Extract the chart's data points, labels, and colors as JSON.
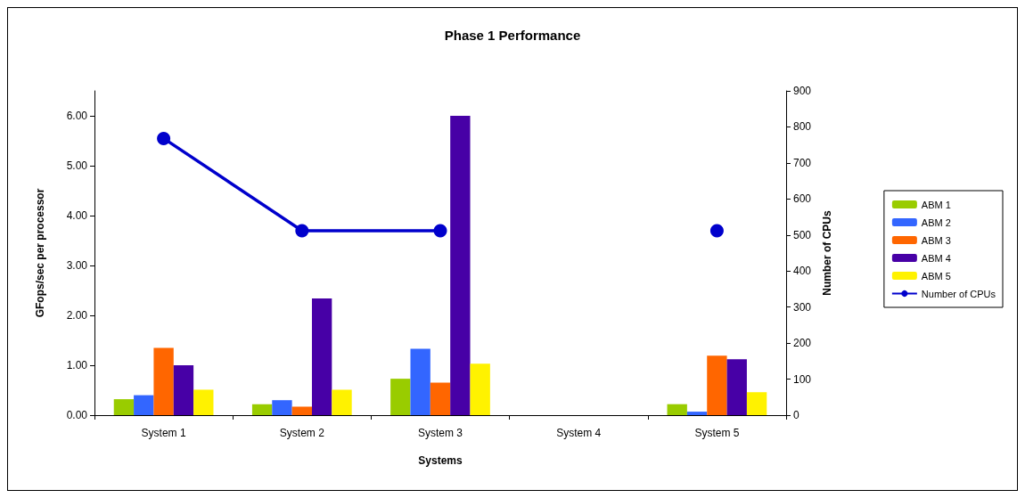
{
  "chart_data": {
    "type": "bar",
    "title": "Phase 1 Performance",
    "xlabel": "Systems",
    "ylabel": "GFops/sec per processor",
    "y2label": "Number of CPUs",
    "categories": [
      "System 1",
      "System 2",
      "System 3",
      "System 4",
      "System 5"
    ],
    "series": [
      {
        "name": "ABM 1",
        "color": "#99cc00",
        "values": [
          0.32,
          0.22,
          0.73,
          null,
          0.22
        ]
      },
      {
        "name": "ABM 2",
        "color": "#3366ff",
        "values": [
          0.4,
          0.3,
          1.33,
          null,
          0.07
        ]
      },
      {
        "name": "ABM 3",
        "color": "#ff6600",
        "values": [
          1.35,
          0.17,
          0.65,
          null,
          1.19
        ]
      },
      {
        "name": "ABM 4",
        "color": "#4700a6",
        "values": [
          1.0,
          2.34,
          6.0,
          null,
          1.12
        ]
      },
      {
        "name": "ABM 5",
        "color": "#fff200",
        "values": [
          0.51,
          0.51,
          1.03,
          null,
          0.46
        ]
      },
      {
        "name": "Number of CPUs",
        "type": "line",
        "axis": "y2",
        "color": "#0000cc",
        "marker": "circle",
        "values": [
          768,
          512,
          512,
          null,
          512
        ]
      }
    ],
    "ylim": [
      0,
      6.5
    ],
    "yticks": [
      {
        "value": 0,
        "label": "0.00"
      },
      {
        "value": 1,
        "label": "1.00"
      },
      {
        "value": 2,
        "label": "2.00"
      },
      {
        "value": 3,
        "label": "3.00"
      },
      {
        "value": 4,
        "label": "4.00"
      },
      {
        "value": 5,
        "label": "5.00"
      },
      {
        "value": 6,
        "label": "6.00"
      }
    ],
    "y2lim": [
      0,
      900
    ],
    "y2ticks": [
      0,
      100,
      200,
      300,
      400,
      500,
      600,
      700,
      800,
      900
    ],
    "grid": false,
    "legend": "right"
  }
}
